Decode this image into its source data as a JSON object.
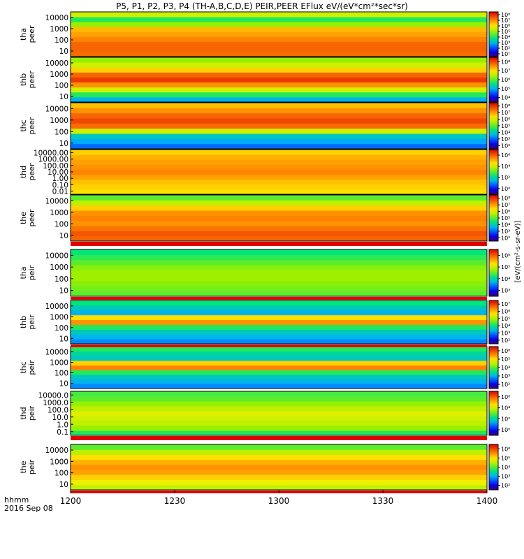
{
  "title": "P5, P1, P2, P3, P4 (TH-A,B,C,D,E) PEIR,PEER EFlux eV/(eV*cm²*sec*sr)",
  "footer": {
    "label_line1": "hhmm",
    "label_line2": "2016 Sep 08"
  },
  "colorbar_unit_label": "[eV/(cm²-s-sr-eV)]",
  "chart_data": {
    "type": "heatmap",
    "x_axis": {
      "ticks": [
        "1200",
        "1230",
        "1300",
        "1330",
        "1400"
      ],
      "range": [
        "12:00",
        "14:00"
      ]
    },
    "panels": [
      {
        "probe": "tha",
        "product": "peer",
        "yticks": [
          "10",
          "100",
          "1000",
          "10000"
        ],
        "cbar_ticks": [
          "10¹",
          "10²",
          "10³",
          "10⁴",
          "10⁵",
          "10⁶",
          "10⁷",
          "10⁸"
        ]
      },
      {
        "probe": "thb",
        "product": "peer",
        "yticks": [
          "10",
          "100",
          "1000",
          "10000"
        ],
        "cbar_ticks": [
          "10⁴",
          "10⁵",
          "10⁶",
          "10⁷",
          "10⁸"
        ]
      },
      {
        "probe": "thc",
        "product": "peer",
        "yticks": [
          "10",
          "100",
          "1000",
          "10000"
        ],
        "cbar_ticks": [
          "10²",
          "10³",
          "10⁴",
          "10⁵",
          "10⁶",
          "10⁷",
          "10⁸"
        ]
      },
      {
        "probe": "thd",
        "product": "peer",
        "yticks": [
          "0.01",
          "0.10",
          "1.00",
          "10.00",
          "100.00",
          "1000.00",
          "10000.00"
        ],
        "cbar_ticks": [
          "10⁰",
          "10²",
          "10⁴",
          "10⁶"
        ]
      },
      {
        "probe": "the",
        "product": "peer",
        "yticks": [
          "10",
          "100",
          "1000",
          "10000"
        ],
        "cbar_ticks": [
          "10²",
          "10³",
          "10⁴",
          "10⁵",
          "10⁶",
          "10⁷",
          "10⁸"
        ]
      },
      {
        "probe": "tha",
        "product": "peir",
        "yticks": [
          "10",
          "100",
          "1000",
          "10000"
        ],
        "cbar_ticks": [
          "10³",
          "10⁴",
          "10⁵",
          "10⁶"
        ]
      },
      {
        "probe": "thb",
        "product": "peir",
        "yticks": [
          "10",
          "100",
          "1000",
          "10000"
        ],
        "cbar_ticks": [
          "10²",
          "10³",
          "10⁴",
          "10⁵",
          "10⁶",
          "10⁷"
        ]
      },
      {
        "probe": "thc",
        "product": "peir",
        "yticks": [
          "10",
          "100",
          "1000",
          "10000"
        ],
        "cbar_ticks": [
          "10²",
          "10³",
          "10⁴",
          "10⁵",
          "10⁶"
        ]
      },
      {
        "probe": "thd",
        "product": "peir",
        "yticks": [
          "0.1",
          "1.0",
          "10.0",
          "100.0",
          "1000.0",
          "10000.0"
        ],
        "cbar_ticks": [
          "10⁰",
          "10²",
          "10⁴",
          "10⁶"
        ]
      },
      {
        "probe": "the",
        "product": "peir",
        "yticks": [
          "10",
          "100",
          "1000",
          "10000"
        ],
        "cbar_ticks": [
          "10²",
          "10³",
          "10⁴",
          "10⁵",
          "10⁶"
        ]
      }
    ]
  }
}
